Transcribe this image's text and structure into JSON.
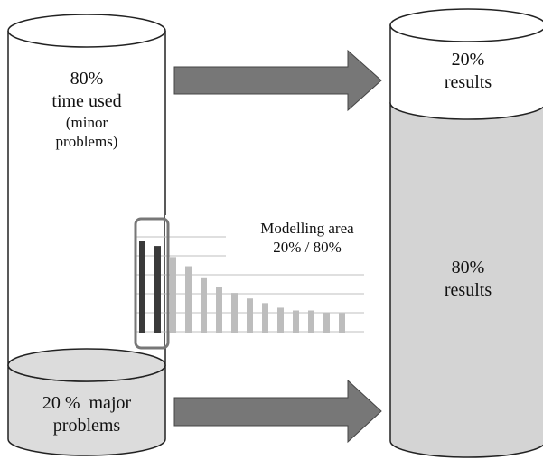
{
  "left_cylinder": {
    "top_text": [
      "80%",
      "time used",
      "(minor",
      "problems)"
    ],
    "bottom_text": [
      "20 %  major",
      "problems"
    ],
    "top_fill": "#ffffff",
    "bottom_fill": "#dcdcdc"
  },
  "right_cylinder": {
    "top_text": [
      "20%",
      "results"
    ],
    "bottom_text": [
      "80%",
      "results"
    ],
    "top_fill": "#ffffff",
    "bottom_fill": "#d4d4d4"
  },
  "arrows": {
    "color": "#777777",
    "icon": "right-arrow-icon"
  },
  "modelling": {
    "label_line1": "Modelling area",
    "label_line2": "20% / 80%",
    "dark_bar_color": "#3a3a3a",
    "light_bar_color": "#bdbdbd",
    "bars": [
      100,
      95,
      83,
      73,
      60,
      50,
      44,
      38,
      33,
      28,
      25,
      25,
      23,
      22
    ]
  }
}
